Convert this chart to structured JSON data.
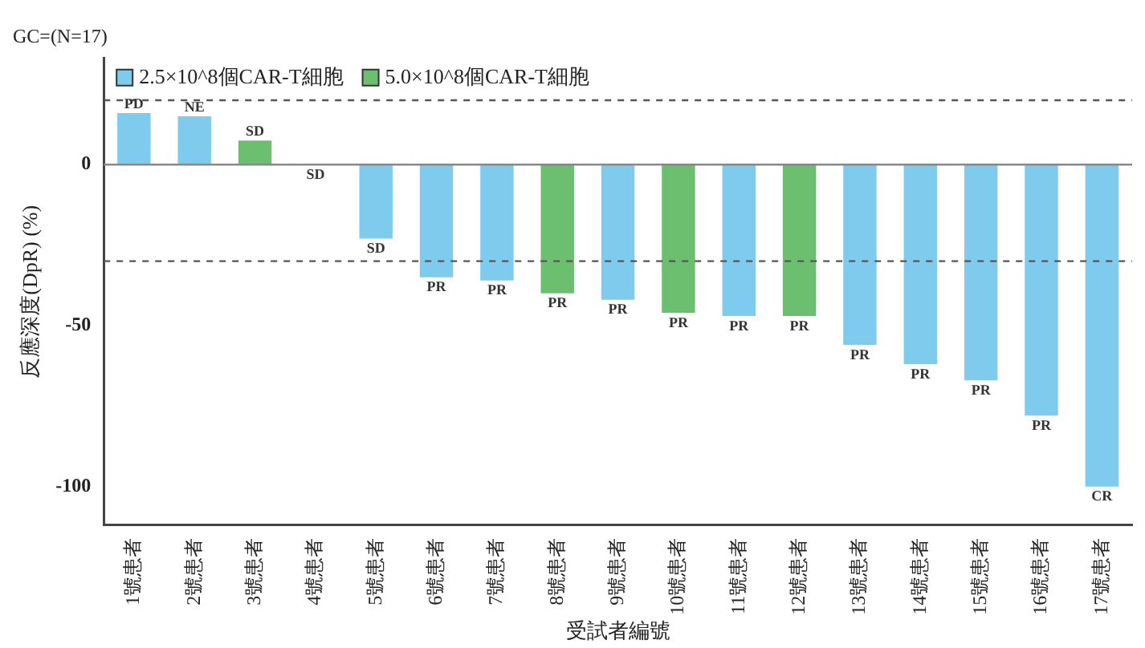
{
  "chart_data": {
    "type": "bar",
    "title": "GC=(N=17)",
    "xlabel": "受試者編號",
    "ylabel": "反應深度(DpR) (%)",
    "categories": [
      "1號患者",
      "2號患者",
      "3號患者",
      "4號患者",
      "5號患者",
      "6號患者",
      "7號患者",
      "8號患者",
      "9號患者",
      "10號患者",
      "11號患者",
      "12號患者",
      "13號患者",
      "14號患者",
      "15號患者",
      "16號患者",
      "17號患者"
    ],
    "stacked": true,
    "series": [
      {
        "name": "2.5×10^8個CAR-T細胞",
        "color": "#7fcbee",
        "values": [
          16,
          15,
          null,
          0,
          -23,
          -35,
          -36,
          null,
          -42,
          null,
          -47,
          null,
          -56,
          -62,
          -67,
          -78,
          -100
        ],
        "value_labels": [
          "PD",
          "NE",
          null,
          "SD",
          "SD",
          "PR",
          "PR",
          null,
          "PR",
          null,
          "PR",
          null,
          "PR",
          "PR",
          "PR",
          "PR",
          "CR"
        ]
      },
      {
        "name": "5.0×10^8個CAR-T細胞",
        "color": "#6cbf6e",
        "values": [
          null,
          null,
          7.5,
          null,
          null,
          null,
          null,
          -40,
          null,
          -46,
          null,
          -47,
          null,
          null,
          null,
          null,
          null
        ],
        "value_labels": [
          null,
          null,
          "SD",
          null,
          null,
          null,
          null,
          "PR",
          null,
          "PR",
          null,
          "PR",
          null,
          null,
          null,
          null,
          null
        ]
      }
    ],
    "ylim": [
      -112,
      33
    ],
    "yticks": [
      0,
      -50,
      -100
    ],
    "ref_lines": [
      {
        "axis": "y",
        "value": 0,
        "color": "#888888",
        "line_style": "solid"
      },
      {
        "axis": "y",
        "value": 20,
        "color": "#555555",
        "line_style": "dashed"
      },
      {
        "axis": "y",
        "value": -30,
        "color": "#555555",
        "line_style": "dashed"
      }
    ],
    "grid": false,
    "legend": "top left"
  }
}
